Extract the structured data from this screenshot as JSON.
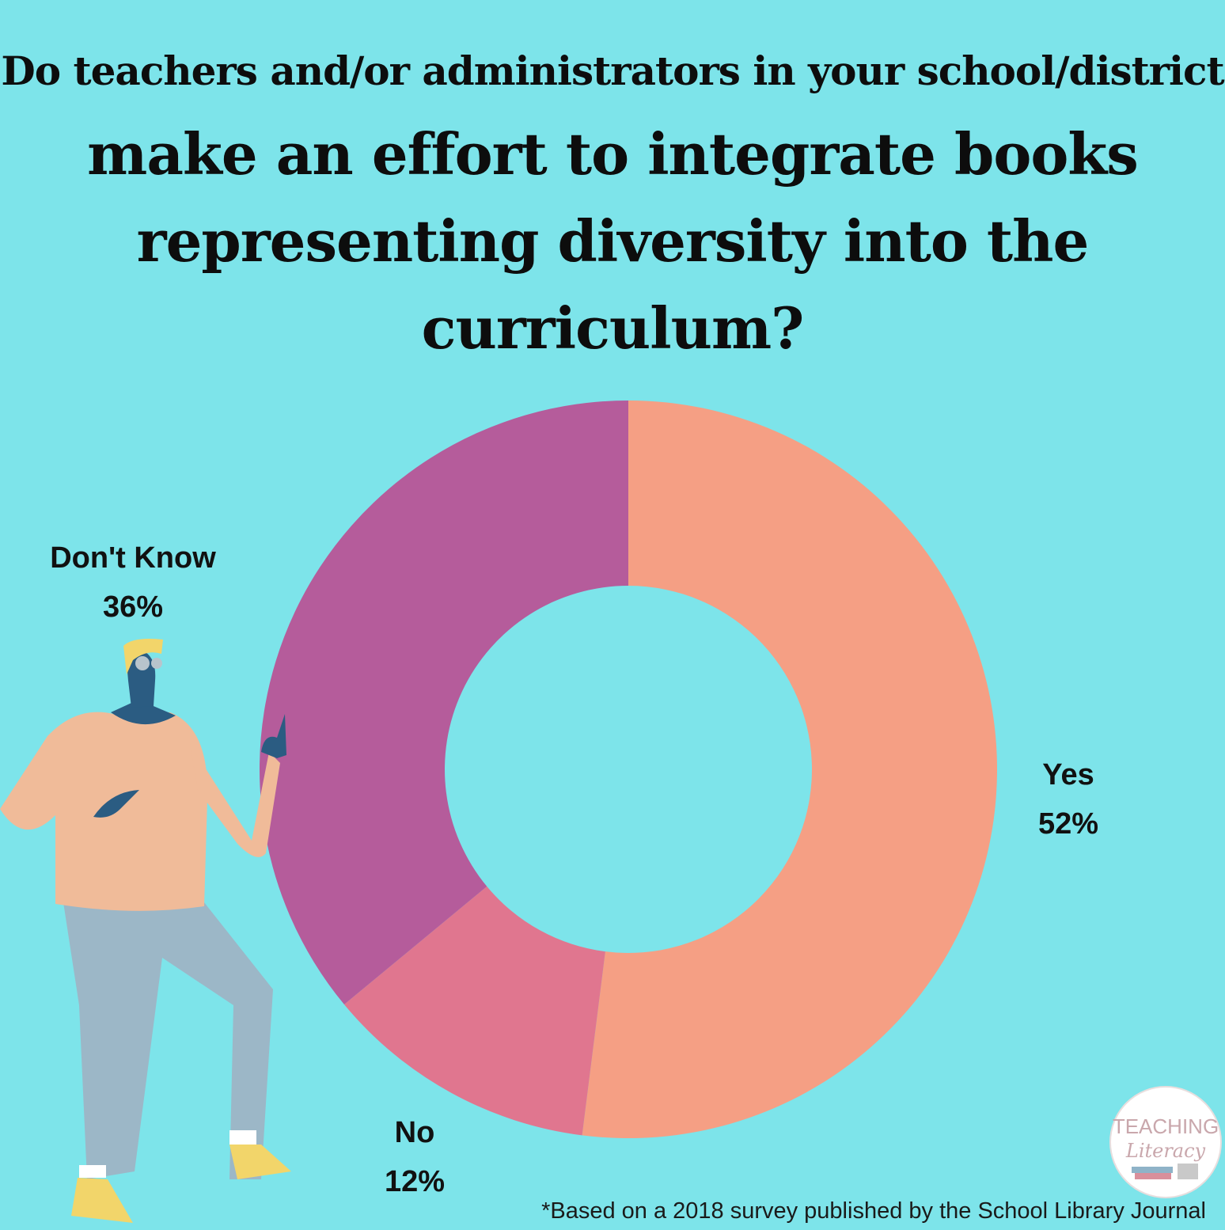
{
  "title_lines": [
    "Do teachers and/or administrators in your school/district",
    "make an effort to integrate books",
    "representing diversity into the",
    "curriculum?"
  ],
  "footnote": "*Based on a 2018 survey published by the School Library Journal",
  "chart_data": {
    "type": "pie",
    "donut": true,
    "title": "Do teachers and/or administrators in your school/district make an effort to integrate books representing diversity into the curriculum?",
    "slices": [
      {
        "label": "Yes",
        "value": 52,
        "value_label": "52%",
        "color": "#f59f84"
      },
      {
        "label": "No",
        "value": 12,
        "value_label": "12%",
        "color": "#e0768f"
      },
      {
        "label": "Don't Know",
        "value": 36,
        "value_label": "36%",
        "color": "#b55c9b"
      }
    ],
    "start": "12 o'clock",
    "direction": "clockwise",
    "legend": "none"
  },
  "colors": {
    "background": "#7de4ea",
    "text": "#111111"
  },
  "illustration": "person-pointing",
  "logo_text": [
    "TEACHING",
    "Literacy"
  ]
}
